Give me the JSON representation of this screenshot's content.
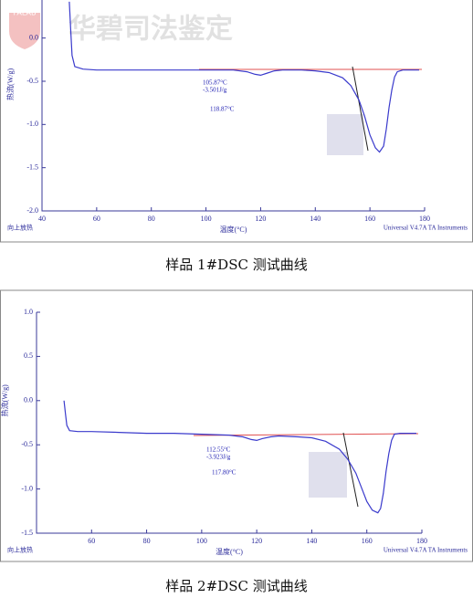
{
  "watermark": {
    "logo": "FALAB",
    "text": "华碧司法鉴定"
  },
  "chart_data": [
    {
      "type": "line",
      "caption": "样品 1#DSC 测试曲线",
      "x_label": "温度(°C)",
      "y_label": "热流(W/g)",
      "corner_note": "向上放热",
      "instrument": "Universal V4.7A TA Instruments",
      "annotations": [
        "105.87°C",
        "-3.501J/g",
        "118.87°C"
      ],
      "color": "#3a3acc",
      "xlim": [
        40,
        180
      ],
      "xticks": [
        40,
        60,
        80,
        100,
        120,
        140,
        160,
        180
      ],
      "ylim": [
        -2.0,
        0.44
      ],
      "yticks": [
        {
          "value": 0,
          "label": "0.0"
        },
        {
          "value": -0.5,
          "label": "-0.5"
        },
        {
          "value": -1,
          "label": "-1.0"
        },
        {
          "value": -1.5,
          "label": "-1.5"
        },
        {
          "value": -2,
          "label": "-2.0"
        }
      ],
      "x": [
        50,
        50.5,
        51,
        52,
        55,
        60,
        70,
        80,
        90,
        100,
        110,
        115,
        118,
        120,
        122,
        125,
        128,
        135,
        140,
        145,
        150,
        153,
        156,
        158,
        160,
        162,
        163.5,
        165,
        166,
        167,
        168,
        169,
        170,
        172,
        175,
        178
      ],
      "values": [
        0.42,
        0.1,
        -0.2,
        -0.33,
        -0.36,
        -0.37,
        -0.37,
        -0.37,
        -0.37,
        -0.37,
        -0.37,
        -0.39,
        -0.42,
        -0.43,
        -0.41,
        -0.38,
        -0.37,
        -0.37,
        -0.38,
        -0.4,
        -0.46,
        -0.55,
        -0.72,
        -0.9,
        -1.12,
        -1.27,
        -1.32,
        -1.25,
        -1.05,
        -0.8,
        -0.6,
        -0.45,
        -0.39,
        -0.37,
        -0.37,
        -0.37
      ]
    },
    {
      "type": "line",
      "caption": "样品 2#DSC 测试曲线",
      "x_label": "温度(°C)",
      "y_label": "热流(W/g)",
      "corner_note": "向上放热",
      "instrument": "Universal V4.7A TA Instruments",
      "annotations": [
        "112.55°C",
        "-3.923J/g",
        "117.80°C"
      ],
      "color": "#3a3acc",
      "xlim": [
        40,
        180
      ],
      "xticks": [
        60,
        80,
        100,
        120,
        140,
        160,
        180
      ],
      "ylim": [
        -1.5,
        1.0
      ],
      "yticks": [
        {
          "value": 1,
          "label": "1.0"
        },
        {
          "value": 0.5,
          "label": "0.5"
        },
        {
          "value": 0,
          "label": "0.0"
        },
        {
          "value": -0.5,
          "label": "-0.5"
        },
        {
          "value": -1,
          "label": "-1.0"
        },
        {
          "value": -1.5,
          "label": "-1.5"
        }
      ],
      "x": [
        50,
        50.5,
        51,
        52,
        55,
        60,
        70,
        80,
        90,
        100,
        110,
        115,
        118,
        120,
        122,
        125,
        128,
        135,
        140,
        145,
        150,
        153,
        156,
        158,
        160,
        162,
        164,
        165,
        166,
        167,
        168,
        169,
        170,
        172,
        175,
        178
      ],
      "values": [
        0.0,
        -0.15,
        -0.28,
        -0.34,
        -0.35,
        -0.35,
        -0.36,
        -0.37,
        -0.37,
        -0.38,
        -0.39,
        -0.41,
        -0.44,
        -0.45,
        -0.43,
        -0.41,
        -0.4,
        -0.41,
        -0.42,
        -0.46,
        -0.55,
        -0.66,
        -0.82,
        -0.98,
        -1.14,
        -1.24,
        -1.27,
        -1.22,
        -1.05,
        -0.8,
        -0.6,
        -0.45,
        -0.38,
        -0.37,
        -0.37,
        -0.37
      ]
    }
  ]
}
